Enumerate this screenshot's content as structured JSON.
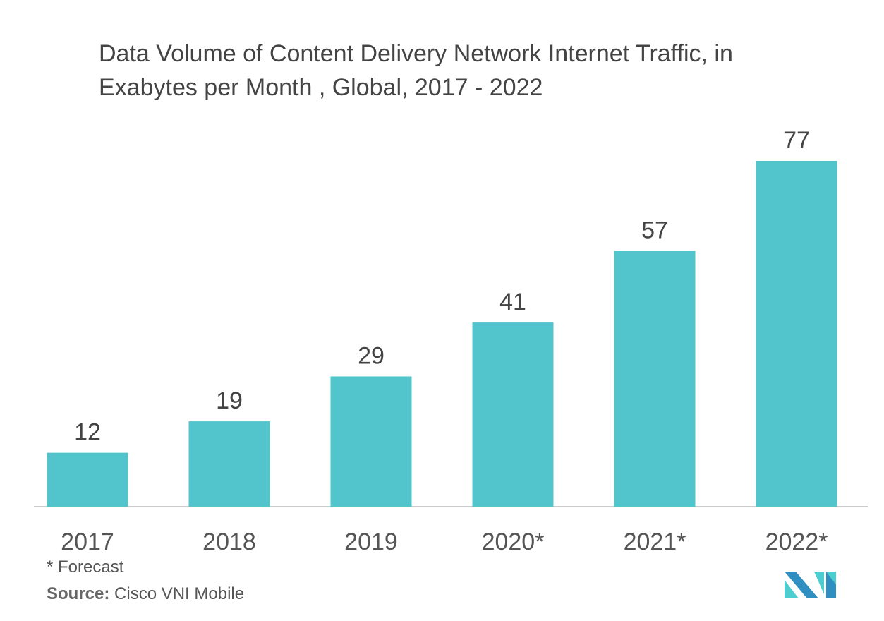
{
  "chart_data": {
    "type": "bar",
    "title": "Data Volume of Content Delivery Network Internet Traffic, in Exabytes per Month , Global, 2017 - 2022",
    "categories": [
      "2017",
      "2018",
      "2019",
      "2020*",
      "2021*",
      "2022*"
    ],
    "values": [
      12,
      19,
      29,
      41,
      57,
      77
    ],
    "xlabel": "",
    "ylabel": "",
    "ylim": [
      0,
      77
    ],
    "grid": false,
    "bar_color": "#52c4cb",
    "data_labels": true
  },
  "footnote": "* Forecast",
  "source_label": "Source:",
  "source_text": "Cisco VNI Mobile",
  "logo_colors": [
    "#2e8fc0",
    "#4ccdd0"
  ]
}
